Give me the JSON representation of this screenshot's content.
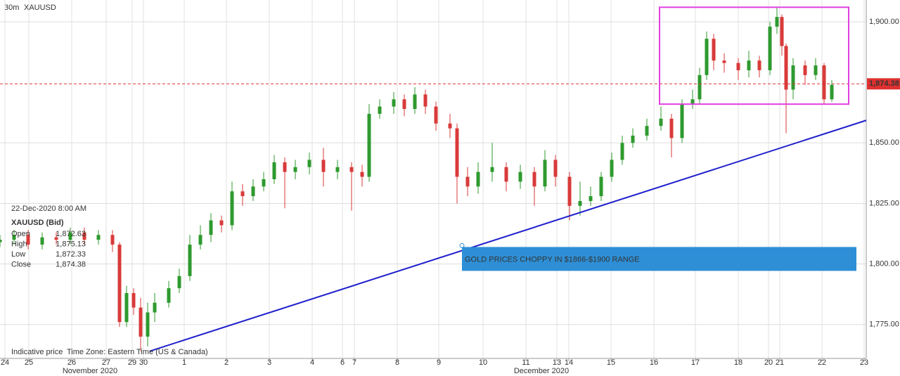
{
  "chart_data": {
    "type": "candlestick",
    "title": "30m",
    "symbol": "XAUUSD",
    "x": [
      0,
      2,
      4,
      6,
      8,
      10,
      12,
      14,
      16,
      17,
      18,
      19,
      20,
      21,
      22,
      24,
      25.5,
      27,
      28.5,
      30,
      31.5,
      33,
      34.5,
      36,
      37.5,
      39,
      40.5,
      42,
      44,
      46,
      48,
      50,
      51.5,
      52.5,
      54,
      56,
      57.5,
      59,
      60.5,
      62,
      64,
      65,
      66.5,
      68,
      70,
      72,
      74,
      76,
      77.5,
      79,
      81,
      82.5,
      84,
      85.5,
      87,
      88.5,
      90,
      92,
      94,
      95.5,
      97,
      98.5,
      99.5,
      100.5,
      101.5,
      103,
      105,
      106.5,
      108,
      109.5,
      110.5,
      111.2,
      111.8,
      112.8,
      114.5,
      116,
      117.2,
      118.3
    ],
    "open": [
      1809,
      1810,
      1812,
      1808,
      1811,
      1810,
      1813,
      1810,
      1812,
      1808,
      1776,
      1788,
      1782,
      1770,
      1780,
      1784,
      1790,
      1795,
      1808,
      1812,
      1818,
      1816,
      1830,
      1828,
      1832,
      1835,
      1842,
      1838,
      1840,
      1843,
      1838,
      1840,
      1838,
      1836,
      1862,
      1865,
      1868,
      1864,
      1870,
      1865,
      1858,
      1856,
      1836,
      1832,
      1838,
      1840,
      1834,
      1838,
      1832,
      1843,
      1836,
      1824,
      1826,
      1828,
      1836,
      1843,
      1850,
      1853,
      1857,
      1860,
      1852,
      1866,
      1868,
      1878,
      1893,
      1884,
      1883,
      1880,
      1884,
      1880,
      1898,
      1902,
      1890,
      1872,
      1882,
      1878,
      1882,
      1868
    ],
    "high": [
      1812,
      1814,
      1814,
      1813,
      1813,
      1815,
      1815,
      1814,
      1814,
      1809,
      1791,
      1790,
      1786,
      1784,
      1788,
      1793,
      1798,
      1812,
      1816,
      1821,
      1820,
      1834,
      1833,
      1835,
      1838,
      1845,
      1844,
      1843,
      1846,
      1848,
      1843,
      1842,
      1841,
      1866,
      1868,
      1871,
      1870,
      1873,
      1872,
      1867,
      1862,
      1858,
      1840,
      1842,
      1850,
      1842,
      1841,
      1840,
      1847,
      1845,
      1838,
      1834,
      1832,
      1838,
      1846,
      1853,
      1856,
      1860,
      1865,
      1862,
      1868,
      1872,
      1881,
      1896,
      1895,
      1887,
      1885,
      1888,
      1886,
      1900,
      1906,
      1903,
      1891,
      1885,
      1884,
      1885,
      1883,
      1876
    ],
    "low": [
      1807,
      1808,
      1806,
      1806,
      1808,
      1808,
      1808,
      1808,
      1805,
      1774,
      1774,
      1779,
      1764,
      1766,
      1776,
      1782,
      1788,
      1793,
      1806,
      1809,
      1813,
      1814,
      1824,
      1826,
      1830,
      1833,
      1823,
      1835,
      1837,
      1832,
      1835,
      1822,
      1832,
      1834,
      1860,
      1862,
      1861,
      1862,
      1862,
      1855,
      1852,
      1825,
      1828,
      1829,
      1834,
      1830,
      1831,
      1824,
      1830,
      1832,
      1818,
      1820,
      1824,
      1826,
      1834,
      1841,
      1848,
      1851,
      1855,
      1844,
      1850,
      1864,
      1866,
      1876,
      1880,
      1879,
      1876,
      1877,
      1877,
      1878,
      1895,
      1886,
      1854,
      1868,
      1874,
      1876,
      1866,
      1867
    ],
    "close": [
      1810,
      1812,
      1808,
      1811,
      1810,
      1813,
      1810,
      1812,
      1808,
      1776,
      1788,
      1782,
      1770,
      1780,
      1784,
      1790,
      1795,
      1808,
      1812,
      1818,
      1816,
      1830,
      1828,
      1832,
      1835,
      1842,
      1838,
      1840,
      1843,
      1838,
      1840,
      1838,
      1836,
      1862,
      1865,
      1868,
      1864,
      1870,
      1865,
      1858,
      1856,
      1836,
      1832,
      1838,
      1840,
      1834,
      1838,
      1832,
      1843,
      1836,
      1824,
      1826,
      1828,
      1836,
      1843,
      1850,
      1853,
      1857,
      1860,
      1852,
      1866,
      1868,
      1878,
      1893,
      1884,
      1883,
      1880,
      1884,
      1880,
      1898,
      1902,
      1890,
      1872,
      1882,
      1878,
      1882,
      1868,
      1874
    ],
    "up_color": "#2e9a2e",
    "down_color": "#d93a3a",
    "xlim": [
      0,
      123.2
    ],
    "xticks": [
      {
        "value": 0.7,
        "label": "24"
      },
      {
        "value": 4.1,
        "label": "25"
      },
      {
        "value": 10.2,
        "label": "26"
      },
      {
        "value": 15.1,
        "label": "27"
      },
      {
        "value": 18.8,
        "label": "29"
      },
      {
        "value": 20.4,
        "label": "30"
      },
      {
        "value": 26.2,
        "label": "1"
      },
      {
        "value": 32.2,
        "label": "2"
      },
      {
        "value": 38.3,
        "label": "3"
      },
      {
        "value": 44.4,
        "label": "4"
      },
      {
        "value": 48.7,
        "label": "6"
      },
      {
        "value": 50.4,
        "label": "7"
      },
      {
        "value": 56.5,
        "label": "8"
      },
      {
        "value": 62.4,
        "label": "9"
      },
      {
        "value": 68.7,
        "label": "10"
      },
      {
        "value": 74.8,
        "label": "11"
      },
      {
        "value": 79.2,
        "label": "13"
      },
      {
        "value": 80.9,
        "label": "14"
      },
      {
        "value": 86.9,
        "label": "15"
      },
      {
        "value": 93,
        "label": "16"
      },
      {
        "value": 98.9,
        "label": "17"
      },
      {
        "value": 105,
        "label": "18"
      },
      {
        "value": 109.3,
        "label": "20"
      },
      {
        "value": 110.9,
        "label": "21"
      },
      {
        "value": 116.9,
        "label": "22"
      },
      {
        "value": 122.9,
        "label": "23"
      }
    ],
    "month_labels": [
      {
        "value": 12.8,
        "label": "November 2020"
      },
      {
        "value": 77,
        "label": "December 2020"
      }
    ],
    "ylim": [
      1761,
      1909
    ],
    "yticks": [
      {
        "value": 1775,
        "label": "1,775.00"
      },
      {
        "value": 1800,
        "label": "1,800.00"
      },
      {
        "value": 1825,
        "label": "1,825.00"
      },
      {
        "value": 1850,
        "label": "1,850.00"
      },
      {
        "value": 1900,
        "label": "1,900.00"
      }
    ],
    "grid": true,
    "last_price": {
      "value": 1874.38,
      "label": "1,874.38",
      "color": "#e03030"
    },
    "box": {
      "x": [
        93.8,
        120.7
      ],
      "y": [
        1866,
        1906
      ],
      "color": "#e040e0"
    },
    "trendline": {
      "x": [
        21.3,
        123.2
      ],
      "y": [
        1764,
        1859.3
      ],
      "color": "#1f1fcc"
    },
    "annotation": {
      "text": "GOLD PRICES CHOPPY IN $1866-$1900 RANGE",
      "x": 65.7,
      "y": 1807.6,
      "color": "#2e8fd6"
    },
    "info": {
      "date": "22-Dec-2020 8:00 AM",
      "symbol_label": "XAUUSD (Bid)",
      "rows": [
        [
          "Open",
          "1,872.63"
        ],
        [
          "High",
          "1,875.13"
        ],
        [
          "Low",
          "1,872.33"
        ],
        [
          "Close",
          "1,874.38"
        ]
      ]
    },
    "footer": [
      "Indicative price",
      "Time Zone: Eastern Time (US & Canada)"
    ]
  }
}
